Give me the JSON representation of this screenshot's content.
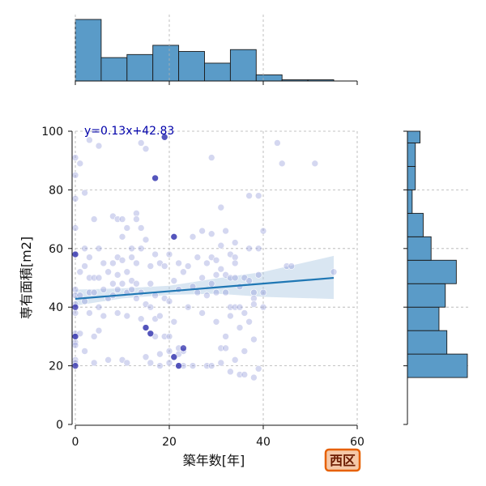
{
  "chart_data": {
    "type": "scatter",
    "xlabel": "築年数[年]",
    "ylabel": "専有面積[m2]",
    "xlim": [
      0,
      60
    ],
    "ylim": [
      0,
      100
    ],
    "x_ticks": [
      0,
      20,
      40,
      60
    ],
    "y_ticks": [
      0,
      20,
      40,
      60,
      80,
      100
    ],
    "grid": true,
    "equation_label": "y=0.13x+42.83",
    "badge_label": "西区",
    "colors": {
      "points": "#8f95d8",
      "points_dark": "#1010a0",
      "regression": "#1f77b4",
      "ci_band": "#aac8e3",
      "hist": "#5a9bc8",
      "equation": "#0000aa",
      "badge_fill": "#f5c8a8",
      "badge_border": "#e66000"
    },
    "regression": {
      "slope": 0.13,
      "intercept": 42.83,
      "x_range": [
        0,
        55
      ]
    },
    "ci_band": {
      "x": [
        0,
        10,
        20,
        30,
        40,
        55
      ],
      "lower": [
        40.5,
        43.0,
        44.2,
        44.6,
        43.5,
        42.8
      ],
      "upper": [
        46.0,
        46.4,
        47.3,
        49.8,
        52.0,
        57.5
      ]
    },
    "x_hist": {
      "bin_edges": [
        0,
        5.5,
        11,
        16.5,
        22,
        27.5,
        33,
        38.5,
        44,
        49.5,
        55
      ],
      "counts": [
        100,
        38,
        43,
        58,
        48,
        29,
        51,
        10,
        2,
        2
      ]
    },
    "y_hist": {
      "bin_edges": [
        16,
        24,
        32,
        40,
        48,
        56,
        64,
        72,
        80,
        88,
        96,
        100
      ],
      "counts": [
        38,
        25,
        20,
        24,
        31,
        15,
        10,
        3,
        5,
        5,
        8
      ]
    },
    "points": [
      {
        "x": 0,
        "y": 91
      },
      {
        "x": 0,
        "y": 85
      },
      {
        "x": 0,
        "y": 77
      },
      {
        "x": 0,
        "y": 67
      },
      {
        "x": 0,
        "y": 58
      },
      {
        "x": 0,
        "y": 46
      },
      {
        "x": 0,
        "y": 44
      },
      {
        "x": 0,
        "y": 41
      },
      {
        "x": 0,
        "y": 38
      },
      {
        "x": 0,
        "y": 31
      },
      {
        "x": 0,
        "y": 30
      },
      {
        "x": 0,
        "y": 28
      },
      {
        "x": 0,
        "y": 27
      },
      {
        "x": 0,
        "y": 22
      },
      {
        "x": 0,
        "y": 21
      },
      {
        "x": 1,
        "y": 89
      },
      {
        "x": 1,
        "y": 52
      },
      {
        "x": 1,
        "y": 31
      },
      {
        "x": 1,
        "y": 44
      },
      {
        "x": 2,
        "y": 79
      },
      {
        "x": 2,
        "y": 60
      },
      {
        "x": 2,
        "y": 54
      },
      {
        "x": 2,
        "y": 42
      },
      {
        "x": 2,
        "y": 25
      },
      {
        "x": 3,
        "y": 97
      },
      {
        "x": 3,
        "y": 50
      },
      {
        "x": 3,
        "y": 57
      },
      {
        "x": 3,
        "y": 45
      },
      {
        "x": 3,
        "y": 38
      },
      {
        "x": 4,
        "y": 70
      },
      {
        "x": 4,
        "y": 50
      },
      {
        "x": 4,
        "y": 45
      },
      {
        "x": 4,
        "y": 30
      },
      {
        "x": 4,
        "y": 21
      },
      {
        "x": 5,
        "y": 95
      },
      {
        "x": 5,
        "y": 60
      },
      {
        "x": 5,
        "y": 50
      },
      {
        "x": 5,
        "y": 40
      },
      {
        "x": 5,
        "y": 32
      },
      {
        "x": 6,
        "y": 55
      },
      {
        "x": 6,
        "y": 46
      },
      {
        "x": 6,
        "y": 37
      },
      {
        "x": 7,
        "y": 52
      },
      {
        "x": 7,
        "y": 43
      },
      {
        "x": 7,
        "y": 22
      },
      {
        "x": 8,
        "y": 71
      },
      {
        "x": 8,
        "y": 55
      },
      {
        "x": 8,
        "y": 48
      },
      {
        "x": 8,
        "y": 44
      },
      {
        "x": 9,
        "y": 70
      },
      {
        "x": 9,
        "y": 57
      },
      {
        "x": 9,
        "y": 51
      },
      {
        "x": 9,
        "y": 46
      },
      {
        "x": 9,
        "y": 38
      },
      {
        "x": 10,
        "y": 70
      },
      {
        "x": 10,
        "y": 64
      },
      {
        "x": 10,
        "y": 56
      },
      {
        "x": 10,
        "y": 48
      },
      {
        "x": 10,
        "y": 22
      },
      {
        "x": 11,
        "y": 67
      },
      {
        "x": 11,
        "y": 52
      },
      {
        "x": 11,
        "y": 45
      },
      {
        "x": 11,
        "y": 37
      },
      {
        "x": 11,
        "y": 21
      },
      {
        "x": 12,
        "y": 60
      },
      {
        "x": 12,
        "y": 57
      },
      {
        "x": 12,
        "y": 49
      },
      {
        "x": 12,
        "y": 46
      },
      {
        "x": 13,
        "y": 72
      },
      {
        "x": 13,
        "y": 70
      },
      {
        "x": 13,
        "y": 55
      },
      {
        "x": 13,
        "y": 48
      },
      {
        "x": 13,
        "y": 43
      },
      {
        "x": 14,
        "y": 96
      },
      {
        "x": 14,
        "y": 67
      },
      {
        "x": 14,
        "y": 60
      },
      {
        "x": 14,
        "y": 45
      },
      {
        "x": 14,
        "y": 36
      },
      {
        "x": 15,
        "y": 94
      },
      {
        "x": 15,
        "y": 63
      },
      {
        "x": 15,
        "y": 41
      },
      {
        "x": 15,
        "y": 33
      },
      {
        "x": 15,
        "y": 23
      },
      {
        "x": 16,
        "y": 54
      },
      {
        "x": 16,
        "y": 48
      },
      {
        "x": 16,
        "y": 40
      },
      {
        "x": 16,
        "y": 31
      },
      {
        "x": 16,
        "y": 21
      },
      {
        "x": 17,
        "y": 84
      },
      {
        "x": 17,
        "y": 58
      },
      {
        "x": 17,
        "y": 44
      },
      {
        "x": 17,
        "y": 36
      },
      {
        "x": 17,
        "y": 30
      },
      {
        "x": 18,
        "y": 55
      },
      {
        "x": 18,
        "y": 37
      },
      {
        "x": 18,
        "y": 24
      },
      {
        "x": 18,
        "y": 20
      },
      {
        "x": 19,
        "y": 98
      },
      {
        "x": 19,
        "y": 54
      },
      {
        "x": 19,
        "y": 43
      },
      {
        "x": 19,
        "y": 30
      },
      {
        "x": 20,
        "y": 58
      },
      {
        "x": 20,
        "y": 42
      },
      {
        "x": 20,
        "y": 30
      },
      {
        "x": 20,
        "y": 25
      },
      {
        "x": 20,
        "y": 21
      },
      {
        "x": 21,
        "y": 64
      },
      {
        "x": 21,
        "y": 49
      },
      {
        "x": 21,
        "y": 35
      },
      {
        "x": 21,
        "y": 23
      },
      {
        "x": 22,
        "y": 55
      },
      {
        "x": 22,
        "y": 46
      },
      {
        "x": 22,
        "y": 26
      },
      {
        "x": 22,
        "y": 24
      },
      {
        "x": 22,
        "y": 20
      },
      {
        "x": 23,
        "y": 52
      },
      {
        "x": 23,
        "y": 25
      },
      {
        "x": 23,
        "y": 20
      },
      {
        "x": 24,
        "y": 54
      },
      {
        "x": 24,
        "y": 40
      },
      {
        "x": 25,
        "y": 64
      },
      {
        "x": 25,
        "y": 47
      },
      {
        "x": 25,
        "y": 20
      },
      {
        "x": 26,
        "y": 57
      },
      {
        "x": 26,
        "y": 45
      },
      {
        "x": 27,
        "y": 66
      },
      {
        "x": 27,
        "y": 50
      },
      {
        "x": 27,
        "y": 38
      },
      {
        "x": 28,
        "y": 55
      },
      {
        "x": 28,
        "y": 44
      },
      {
        "x": 28,
        "y": 20
      },
      {
        "x": 29,
        "y": 91
      },
      {
        "x": 29,
        "y": 65
      },
      {
        "x": 29,
        "y": 57
      },
      {
        "x": 29,
        "y": 48
      },
      {
        "x": 29,
        "y": 20
      },
      {
        "x": 30,
        "y": 56
      },
      {
        "x": 30,
        "y": 51
      },
      {
        "x": 30,
        "y": 45
      },
      {
        "x": 30,
        "y": 35
      },
      {
        "x": 31,
        "y": 74
      },
      {
        "x": 31,
        "y": 61
      },
      {
        "x": 31,
        "y": 53
      },
      {
        "x": 31,
        "y": 26
      },
      {
        "x": 31,
        "y": 21
      },
      {
        "x": 32,
        "y": 66
      },
      {
        "x": 32,
        "y": 51
      },
      {
        "x": 32,
        "y": 45
      },
      {
        "x": 32,
        "y": 30
      },
      {
        "x": 32,
        "y": 26
      },
      {
        "x": 33,
        "y": 58
      },
      {
        "x": 33,
        "y": 50
      },
      {
        "x": 33,
        "y": 40
      },
      {
        "x": 33,
        "y": 37
      },
      {
        "x": 33,
        "y": 18
      },
      {
        "x": 34,
        "y": 62
      },
      {
        "x": 34,
        "y": 57
      },
      {
        "x": 34,
        "y": 55
      },
      {
        "x": 34,
        "y": 50
      },
      {
        "x": 34,
        "y": 40
      },
      {
        "x": 34,
        "y": 22
      },
      {
        "x": 35,
        "y": 47
      },
      {
        "x": 35,
        "y": 40
      },
      {
        "x": 35,
        "y": 33
      },
      {
        "x": 35,
        "y": 17
      },
      {
        "x": 36,
        "y": 50
      },
      {
        "x": 36,
        "y": 38
      },
      {
        "x": 36,
        "y": 25
      },
      {
        "x": 36,
        "y": 17
      },
      {
        "x": 37,
        "y": 78
      },
      {
        "x": 37,
        "y": 60
      },
      {
        "x": 37,
        "y": 49
      },
      {
        "x": 37,
        "y": 35
      },
      {
        "x": 38,
        "y": 45
      },
      {
        "x": 38,
        "y": 43
      },
      {
        "x": 38,
        "y": 41
      },
      {
        "x": 38,
        "y": 29
      },
      {
        "x": 38,
        "y": 16
      },
      {
        "x": 39,
        "y": 78
      },
      {
        "x": 39,
        "y": 60
      },
      {
        "x": 39,
        "y": 51
      },
      {
        "x": 39,
        "y": 19
      },
      {
        "x": 40,
        "y": 66
      },
      {
        "x": 40,
        "y": 45
      },
      {
        "x": 40,
        "y": 40
      },
      {
        "x": 43,
        "y": 96
      },
      {
        "x": 44,
        "y": 89
      },
      {
        "x": 45,
        "y": 54
      },
      {
        "x": 46,
        "y": 54
      },
      {
        "x": 51,
        "y": 89
      },
      {
        "x": 55,
        "y": 52
      }
    ],
    "highlight_points": [
      {
        "x": 0,
        "y": 20
      },
      {
        "x": 0,
        "y": 30
      },
      {
        "x": 0,
        "y": 40
      },
      {
        "x": 0,
        "y": 58
      },
      {
        "x": 17,
        "y": 84
      },
      {
        "x": 19,
        "y": 98
      },
      {
        "x": 21,
        "y": 64
      },
      {
        "x": 22,
        "y": 20
      },
      {
        "x": 16,
        "y": 31
      },
      {
        "x": 15,
        "y": 33
      },
      {
        "x": 21,
        "y": 23
      },
      {
        "x": 23,
        "y": 26
      }
    ]
  }
}
